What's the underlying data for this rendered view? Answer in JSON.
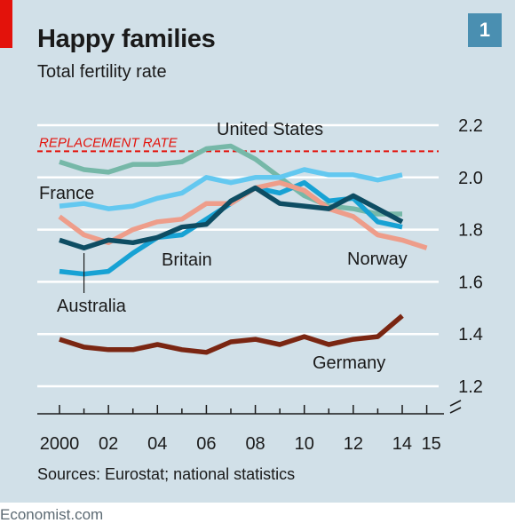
{
  "header": {
    "title": "Happy families",
    "subtitle": "Total fertility rate",
    "badge": "1"
  },
  "footer": {
    "source": "Sources: Eurostat; national statistics",
    "credit": "Economist.com"
  },
  "colors": {
    "background": "#d1e0e8",
    "accent_red": "#e3120b",
    "badge": "#4a8fb1"
  },
  "chart_data": {
    "type": "line",
    "title": "Happy families",
    "subtitle": "Total fertility rate",
    "ylim": [
      1.2,
      2.2
    ],
    "yticks": [
      1.2,
      1.4,
      1.6,
      1.8,
      2.0,
      2.2
    ],
    "ytick_labels": [
      "1.2",
      "1.4",
      "1.6",
      "1.8",
      "2.0",
      "2.2"
    ],
    "xticks": [
      2000,
      2002,
      2004,
      2006,
      2008,
      2010,
      2012,
      2014,
      2015
    ],
    "xtick_labels": [
      "2000",
      "02",
      "04",
      "06",
      "08",
      "10",
      "12",
      "14",
      "15"
    ],
    "grid": true,
    "broken_axis": true,
    "reference_line": {
      "label": "REPLACEMENT RATE",
      "value": 2.1,
      "color": "#e3120b"
    },
    "series": [
      {
        "name": "United States",
        "color": "#76b8a8",
        "x": [
          2000,
          2001,
          2002,
          2003,
          2004,
          2005,
          2006,
          2007,
          2008,
          2009,
          2010,
          2011,
          2012,
          2013,
          2014
        ],
        "values": [
          2.06,
          2.03,
          2.02,
          2.05,
          2.05,
          2.06,
          2.11,
          2.12,
          2.07,
          2.0,
          1.93,
          1.89,
          1.88,
          1.86,
          1.86
        ]
      },
      {
        "name": "France",
        "color": "#63c8f0",
        "x": [
          2000,
          2001,
          2002,
          2003,
          2004,
          2005,
          2006,
          2007,
          2008,
          2009,
          2010,
          2011,
          2012,
          2013,
          2014
        ],
        "values": [
          1.89,
          1.9,
          1.88,
          1.89,
          1.92,
          1.94,
          2.0,
          1.98,
          2.0,
          2.0,
          2.03,
          2.01,
          2.01,
          1.99,
          2.01
        ]
      },
      {
        "name": "Britain",
        "color": "#17a2d4",
        "x": [
          2000,
          2001,
          2002,
          2003,
          2004,
          2005,
          2006,
          2007,
          2008,
          2009,
          2010,
          2011,
          2012,
          2013,
          2014
        ],
        "values": [
          1.64,
          1.63,
          1.64,
          1.71,
          1.77,
          1.78,
          1.84,
          1.9,
          1.96,
          1.94,
          1.98,
          1.91,
          1.92,
          1.83,
          1.81
        ]
      },
      {
        "name": "Norway",
        "color": "#ee9d8a",
        "x": [
          2000,
          2001,
          2002,
          2003,
          2004,
          2005,
          2006,
          2007,
          2008,
          2009,
          2010,
          2011,
          2012,
          2013,
          2014,
          2015
        ],
        "values": [
          1.85,
          1.78,
          1.75,
          1.8,
          1.83,
          1.84,
          1.9,
          1.9,
          1.96,
          1.98,
          1.95,
          1.88,
          1.85,
          1.78,
          1.76,
          1.73
        ]
      },
      {
        "name": "Australia",
        "color": "#0e4d63",
        "x": [
          2000,
          2001,
          2002,
          2003,
          2004,
          2005,
          2006,
          2007,
          2008,
          2009,
          2010,
          2011,
          2012,
          2013,
          2014
        ],
        "values": [
          1.76,
          1.73,
          1.76,
          1.75,
          1.77,
          1.81,
          1.82,
          1.91,
          1.96,
          1.9,
          1.89,
          1.88,
          1.93,
          1.88,
          1.83
        ]
      },
      {
        "name": "Germany",
        "color": "#7a2612",
        "x": [
          2000,
          2001,
          2002,
          2003,
          2004,
          2005,
          2006,
          2007,
          2008,
          2009,
          2010,
          2011,
          2012,
          2013,
          2014
        ],
        "values": [
          1.38,
          1.35,
          1.34,
          1.34,
          1.36,
          1.34,
          1.33,
          1.37,
          1.38,
          1.36,
          1.39,
          1.36,
          1.38,
          1.39,
          1.47
        ]
      }
    ]
  }
}
